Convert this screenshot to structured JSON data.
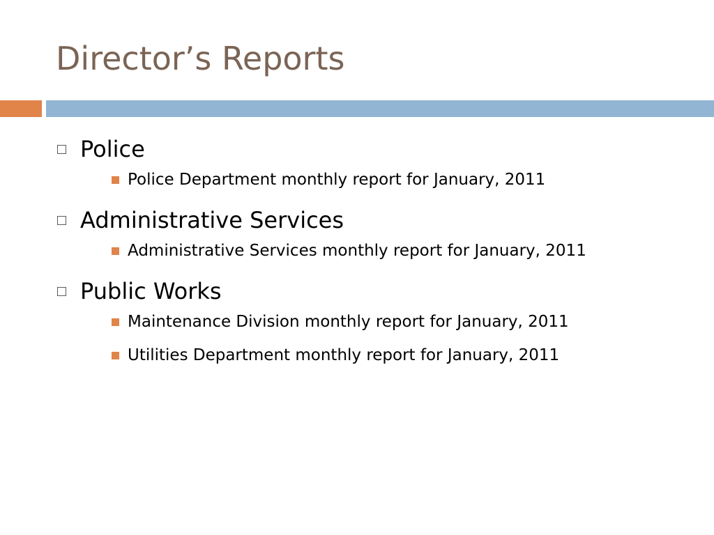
{
  "colors": {
    "title": "#7a6455",
    "accent_orange": "#e0844a",
    "accent_blue": "#92b5d3",
    "sub_bullet": "#e0844a"
  },
  "slide": {
    "title": "Director’s Reports",
    "sections": [
      {
        "heading": "Police",
        "items": [
          "Police Department monthly report for January, 2011"
        ]
      },
      {
        "heading": "Administrative Services",
        "items": [
          "Administrative Services monthly report for January, 2011"
        ]
      },
      {
        "heading": "Public Works",
        "items": [
          "Maintenance Division monthly report for January, 2011",
          "Utilities Department monthly report for January, 2011"
        ]
      }
    ]
  }
}
